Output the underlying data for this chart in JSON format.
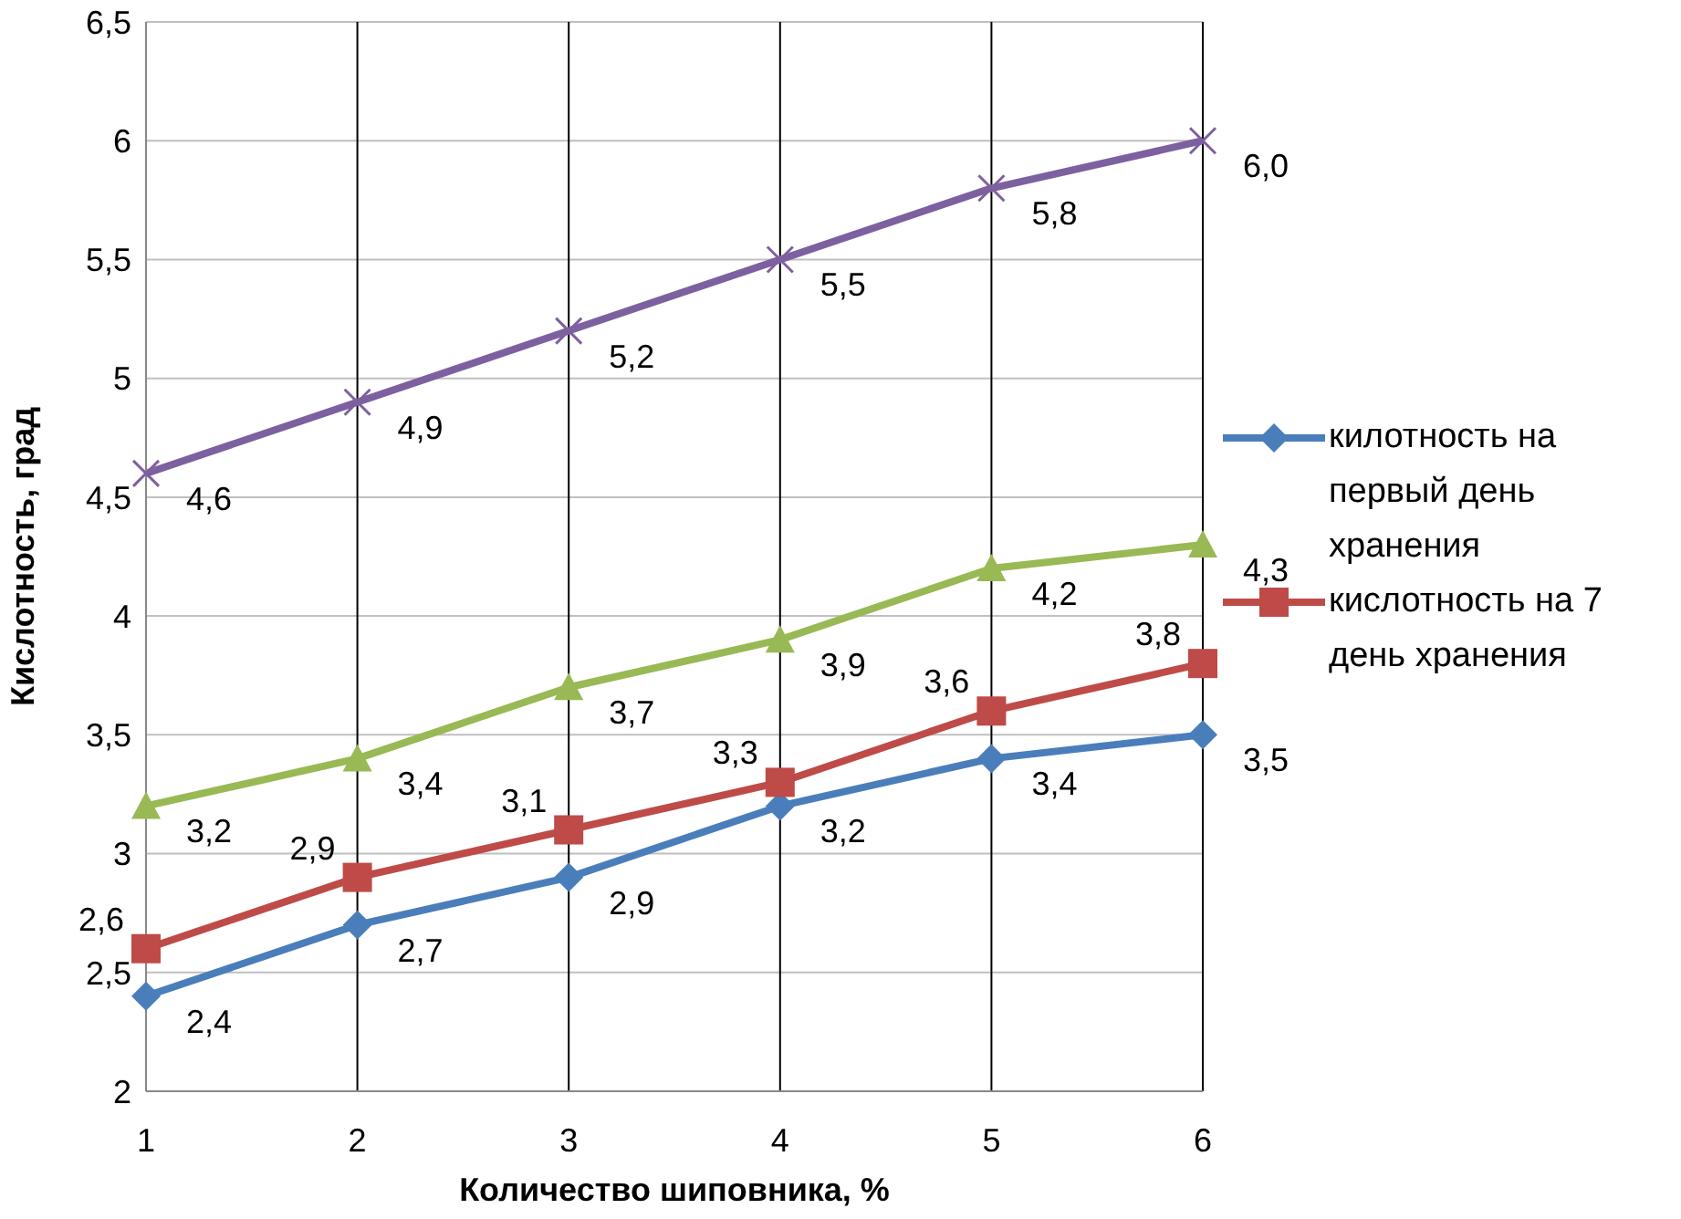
{
  "chart_data": {
    "type": "line",
    "xlabel": "Количество шиповника, %",
    "ylabel": "Кислотность, град",
    "categories": [
      "1",
      "2",
      "3",
      "4",
      "5",
      "6"
    ],
    "ylim": [
      2,
      6.5
    ],
    "yticks": [
      2,
      {
        "value": 2.5,
        "label": "2,5"
      },
      3,
      {
        "value": 3.5,
        "label": "3,5"
      },
      4,
      {
        "value": 4.5,
        "label": "4,5"
      },
      5,
      {
        "value": 5.5,
        "label": "5,5"
      },
      6,
      {
        "value": 6.5,
        "label": "6,5"
      }
    ],
    "grid": true,
    "legend": "right",
    "line_style": "solid",
    "series": [
      {
        "name": "килотность на первый день хранения",
        "color": "#4a7ebb",
        "marker": "diamond",
        "values": [
          2.4,
          2.7,
          2.9,
          3.2,
          3.4,
          3.5
        ],
        "value_labels": [
          "2,4",
          "2,7",
          "2,9",
          "3,2",
          "3,4",
          "3,5"
        ]
      },
      {
        "name": "кислотность на 7 день хранения",
        "color": "#be4b48",
        "marker": "square",
        "values": [
          2.6,
          2.9,
          3.1,
          3.3,
          3.6,
          3.8
        ],
        "value_labels": [
          "2,6",
          "2,9",
          "3,1",
          "3,3",
          "3,6",
          "3,8"
        ]
      },
      {
        "color": "#98b954",
        "marker": "triangle",
        "values": [
          3.2,
          3.4,
          3.7,
          3.9,
          4.2,
          4.3
        ],
        "value_labels": [
          "3,2",
          "3,4",
          "3,7",
          "3,9",
          "4,2",
          "4,3"
        ]
      },
      {
        "color": "#7d60a0",
        "marker": "cross",
        "values": [
          4.6,
          4.9,
          5.2,
          5.5,
          5.8,
          6.0
        ],
        "value_labels": [
          "4,6",
          "4,9",
          "5,2",
          "5,5",
          "5,8",
          "6,0"
        ]
      }
    ]
  }
}
